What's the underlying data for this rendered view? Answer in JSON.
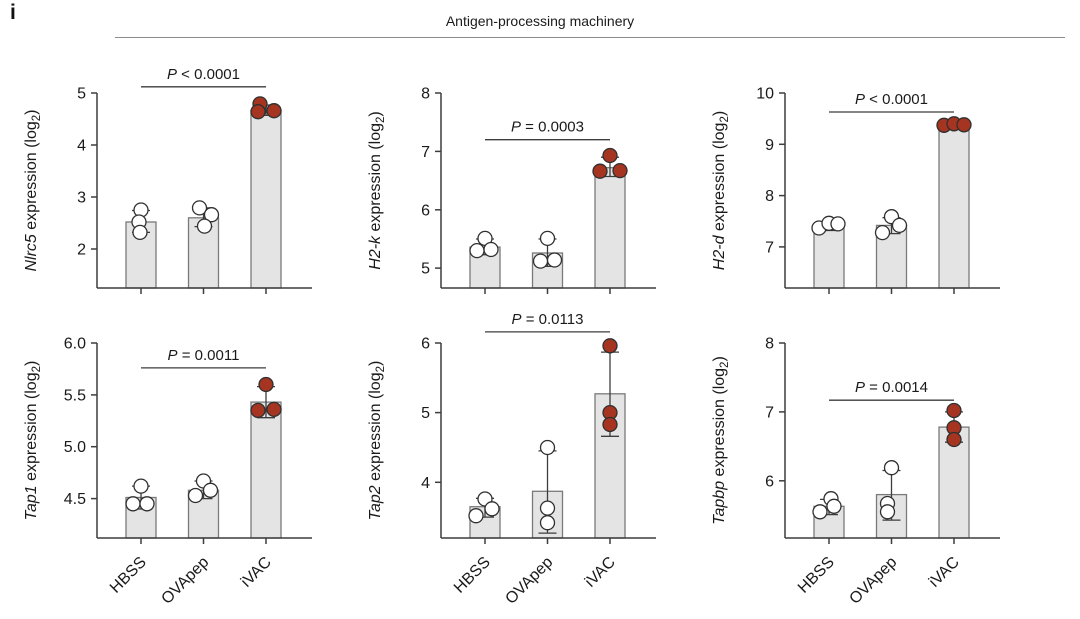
{
  "figure": {
    "panel_label": "i",
    "title": "Antigen-processing machinery"
  },
  "style": {
    "bar_fill": "#e4e4e4",
    "bar_stroke": "#7a7a7a",
    "axis_color": "#3d3d3d",
    "white_point_fill": "#ffffff",
    "red_point_fill": "#a53521",
    "point_stroke": "#303030",
    "header_line_color": "#8c8c8c"
  },
  "categories": [
    "HBSS",
    "OVApep",
    "iVAC"
  ],
  "ylabel_template": {
    "text": " expression (log",
    "sub": "2",
    "close": ")"
  },
  "chart_data": [
    {
      "type": "bar",
      "gene": "Nlrc5",
      "ytick_labels": [
        "2",
        "3",
        "4",
        "5"
      ],
      "ymin": 1.25,
      "ymax": 5,
      "p_value": "P < 0.0001",
      "pline_y": 5.12,
      "groups": [
        {
          "name": "HBSS",
          "bar": 2.52,
          "err": [
            2.32,
            2.74
          ],
          "point_color": "white",
          "points": [
            [
              0,
              2.75
            ],
            [
              -2,
              2.52
            ],
            [
              -1,
              2.32
            ]
          ]
        },
        {
          "name": "OVApep",
          "bar": 2.6,
          "err": [
            2.43,
            2.79
          ],
          "point_color": "white",
          "points": [
            [
              -4,
              2.79
            ],
            [
              8,
              2.66
            ],
            [
              1,
              2.44
            ]
          ]
        },
        {
          "name": "iVAC",
          "bar": 4.67,
          "err": [
            4.57,
            4.77
          ],
          "point_color": "red",
          "points": [
            [
              -6,
              4.79
            ],
            [
              -8,
              4.64
            ],
            [
              8,
              4.66
            ]
          ]
        }
      ]
    },
    {
      "type": "bar",
      "gene": "H2-k",
      "ytick_labels": [
        "5",
        "6",
        "7",
        "8"
      ],
      "ymin": 4.66,
      "ymax": 8,
      "p_value": "P = 0.0003",
      "pline_y": 7.2,
      "groups": [
        {
          "name": "HBSS",
          "bar": 5.36,
          "err": [
            5.23,
            5.5
          ],
          "point_color": "white",
          "points": [
            [
              0,
              5.51
            ],
            [
              -8,
              5.3
            ],
            [
              6,
              5.32
            ]
          ]
        },
        {
          "name": "OVApep",
          "bar": 5.26,
          "err": [
            5.03,
            5.5
          ],
          "point_color": "white",
          "points": [
            [
              0,
              5.51
            ],
            [
              -7,
              5.12
            ],
            [
              7,
              5.14
            ]
          ]
        },
        {
          "name": "iVAC",
          "bar": 6.72,
          "err": [
            6.57,
            6.9
          ],
          "point_color": "red",
          "points": [
            [
              0,
              6.93
            ],
            [
              -10,
              6.66
            ],
            [
              10,
              6.67
            ]
          ]
        }
      ]
    },
    {
      "type": "bar",
      "gene": "H2-d",
      "ytick_labels": [
        "7",
        "8",
        "9",
        "10"
      ],
      "ymin": 6.2,
      "ymax": 10,
      "p_value": "P < 0.0001",
      "pline_y": 9.63,
      "groups": [
        {
          "name": "HBSS",
          "bar": 7.4,
          "err": [
            7.32,
            7.47
          ],
          "point_color": "white",
          "points": [
            [
              -10,
              7.37
            ],
            [
              0,
              7.46
            ],
            [
              9,
              7.45
            ]
          ]
        },
        {
          "name": "OVApep",
          "bar": 7.42,
          "err": [
            7.26,
            7.57
          ],
          "point_color": "white",
          "points": [
            [
              0,
              7.59
            ],
            [
              8,
              7.42
            ],
            [
              -9,
              7.28
            ]
          ]
        },
        {
          "name": "iVAC",
          "bar": 9.38,
          "err": [
            9.33,
            9.43
          ],
          "point_color": "red",
          "points": [
            [
              -10,
              9.37
            ],
            [
              0,
              9.4
            ],
            [
              10,
              9.38
            ]
          ]
        }
      ]
    },
    {
      "type": "bar",
      "gene": "Tap1",
      "ytick_labels": [
        "4.5",
        "5.0",
        "5.5",
        "6.0"
      ],
      "ymin": 4.12,
      "ymax": 6,
      "p_value": "P = 0.0011",
      "pline_y": 5.76,
      "groups": [
        {
          "name": "HBSS",
          "bar": 4.51,
          "err": [
            4.4,
            4.62
          ],
          "point_color": "white",
          "points": [
            [
              0,
              4.62
            ],
            [
              -8,
              4.45
            ],
            [
              6,
              4.45
            ]
          ]
        },
        {
          "name": "OVApep",
          "bar": 4.58,
          "err": [
            4.5,
            4.67
          ],
          "point_color": "white",
          "points": [
            [
              0,
              4.67
            ],
            [
              -8,
              4.53
            ],
            [
              7,
              4.58
            ]
          ]
        },
        {
          "name": "iVAC",
          "bar": 5.43,
          "err": [
            5.28,
            5.58
          ],
          "point_color": "red",
          "points": [
            [
              0,
              5.6
            ],
            [
              -8,
              5.35
            ],
            [
              8,
              5.36
            ]
          ]
        }
      ]
    },
    {
      "type": "bar",
      "gene": "Tap2",
      "ytick_labels": [
        "4",
        "5",
        "6"
      ],
      "ymin": 3.2,
      "ymax": 6,
      "p_value": "P = 0.0113",
      "pline_y": 6.16,
      "groups": [
        {
          "name": "HBSS",
          "bar": 3.65,
          "err": [
            3.5,
            3.77
          ],
          "point_color": "white",
          "points": [
            [
              0,
              3.76
            ],
            [
              -9,
              3.52
            ],
            [
              7,
              3.62
            ]
          ]
        },
        {
          "name": "OVApep",
          "bar": 3.87,
          "err": [
            3.27,
            4.45
          ],
          "point_color": "white",
          "points": [
            [
              0,
              4.5
            ],
            [
              0,
              3.63
            ],
            [
              0,
              3.42
            ]
          ]
        },
        {
          "name": "iVAC",
          "bar": 5.27,
          "err": [
            4.66,
            5.87
          ],
          "point_color": "red",
          "points": [
            [
              0,
              5.96
            ],
            [
              0,
              5.0
            ],
            [
              0,
              4.83
            ]
          ]
        }
      ]
    },
    {
      "type": "bar",
      "gene": "Tapbp",
      "ytick_labels": [
        "6",
        "7",
        "8"
      ],
      "ymin": 5.17,
      "ymax": 8,
      "p_value": "P = 0.0014",
      "pline_y": 7.17,
      "groups": [
        {
          "name": "HBSS",
          "bar": 5.63,
          "err": [
            5.51,
            5.73
          ],
          "point_color": "white",
          "points": [
            [
              2,
              5.74
            ],
            [
              -9,
              5.55
            ],
            [
              5,
              5.63
            ]
          ]
        },
        {
          "name": "OVApep",
          "bar": 5.8,
          "err": [
            5.43,
            6.15
          ],
          "point_color": "white",
          "points": [
            [
              0,
              6.19
            ],
            [
              -4,
              5.67
            ],
            [
              -4,
              5.55
            ]
          ]
        },
        {
          "name": "iVAC",
          "bar": 6.78,
          "err": [
            6.56,
            7.0
          ],
          "point_color": "red",
          "points": [
            [
              0,
              7.02
            ],
            [
              0,
              6.77
            ],
            [
              0,
              6.6
            ]
          ]
        }
      ]
    }
  ]
}
